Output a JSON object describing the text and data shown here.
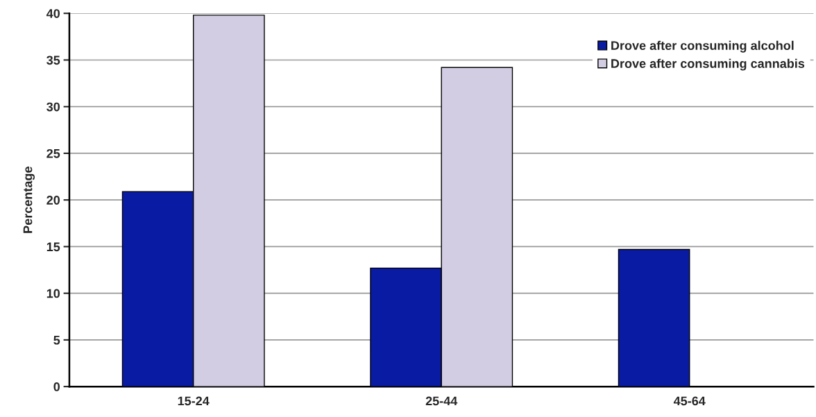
{
  "chart_data": {
    "type": "bar",
    "ylabel": "Percentage",
    "categories": [
      "15-24",
      "25-44",
      "45-64"
    ],
    "series": [
      {
        "name": "Drove after consuming alcohol",
        "color": "#0a1ba3",
        "values": [
          20.9,
          12.7,
          14.7
        ]
      },
      {
        "name": "Drove after consuming cannabis",
        "color": "#d3cde3",
        "values": [
          39.8,
          34.2,
          null
        ]
      }
    ],
    "ylim": [
      0,
      40
    ],
    "yticks": [
      0,
      5,
      10,
      15,
      20,
      25,
      30,
      35,
      40
    ],
    "grid": "y",
    "legend": "top right"
  }
}
